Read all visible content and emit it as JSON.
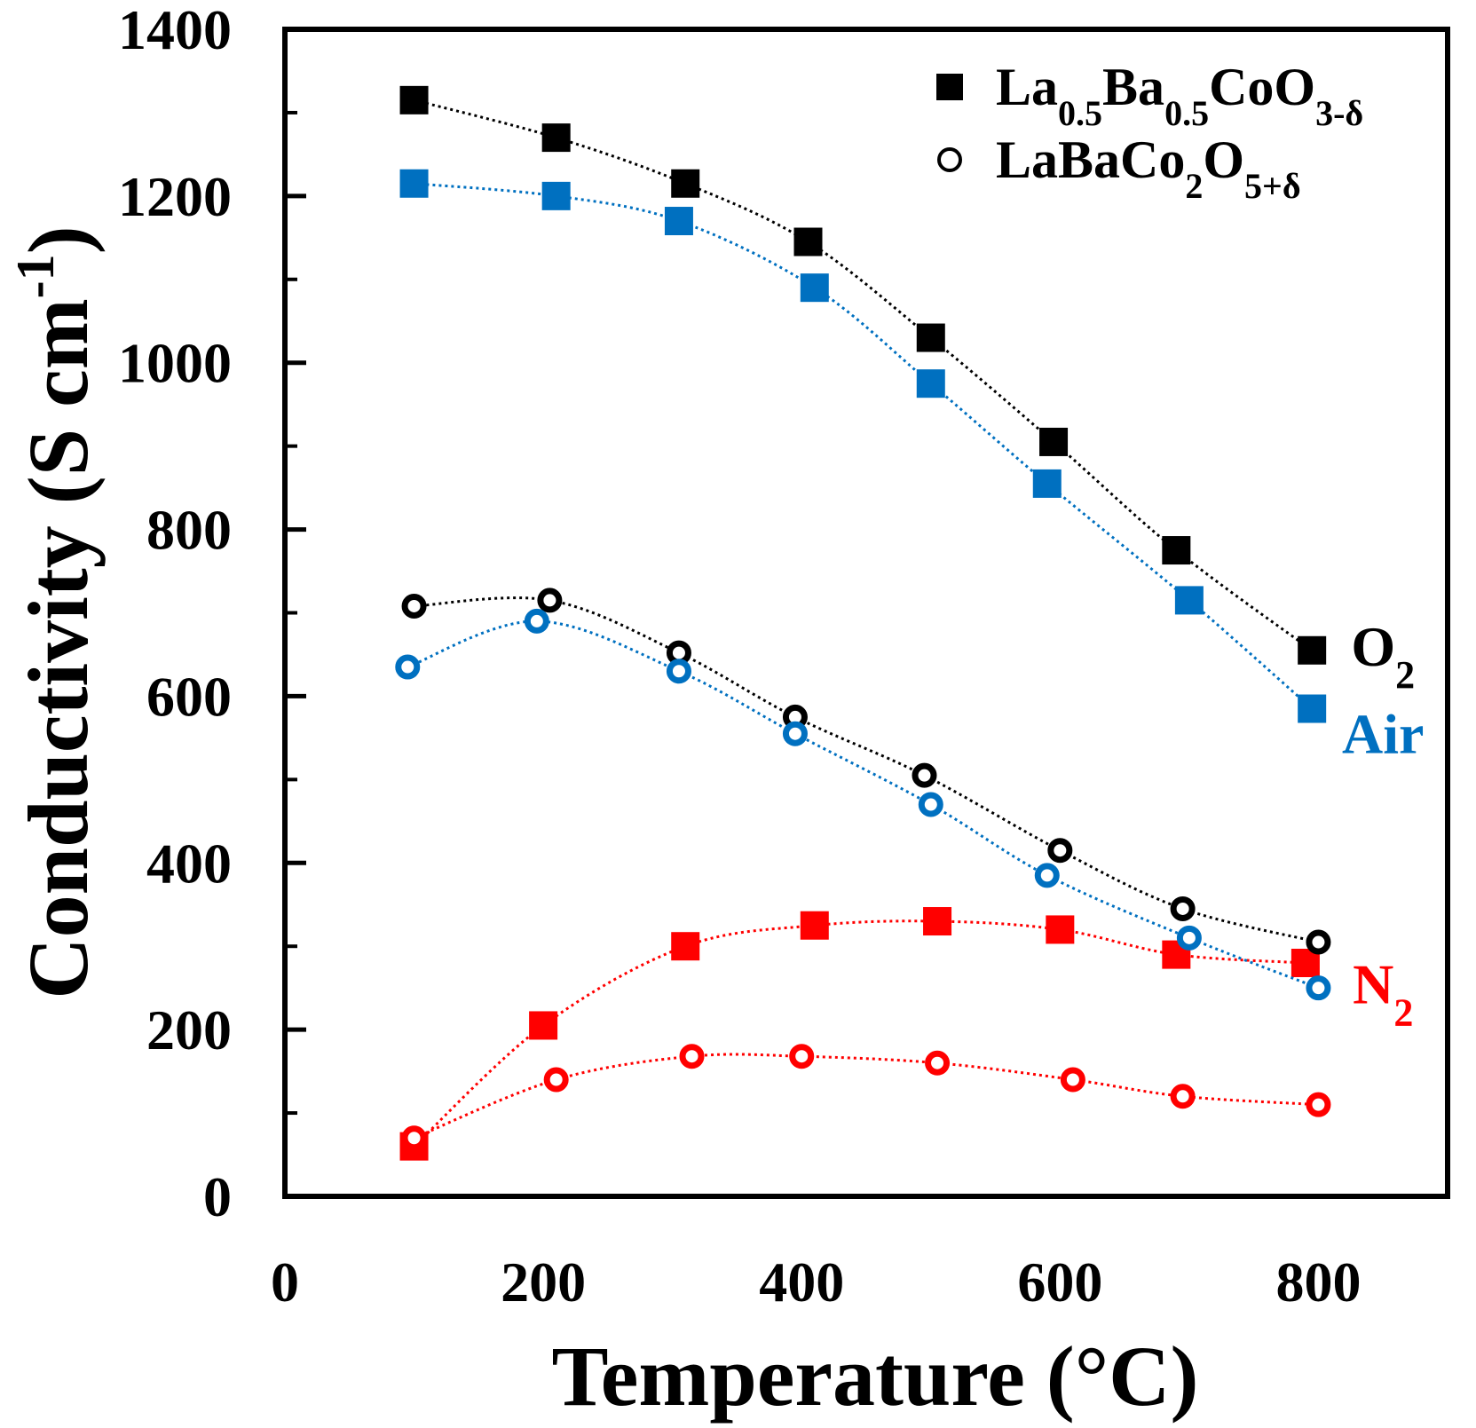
{
  "chart_data": {
    "type": "line",
    "title": "",
    "xlabel": "Temperature (°C)",
    "ylabel_main": "Conductivity (S cm",
    "ylabel_sup": "-1",
    "ylabel_close": ")",
    "xlim": [
      0,
      900
    ],
    "ylim": [
      0,
      1400
    ],
    "x_ticks": [
      0,
      200,
      400,
      600,
      800
    ],
    "y_ticks": [
      0,
      200,
      400,
      600,
      800,
      1000,
      1200,
      1400
    ],
    "y_minor_step": 100,
    "legend": [
      {
        "marker": "filled-square",
        "label_parts": [
          [
            "La",
            ""
          ],
          [
            "0.5",
            "sub"
          ],
          [
            "Ba",
            ""
          ],
          [
            "0.5",
            "sub"
          ],
          [
            "CoO",
            ""
          ],
          [
            "3-δ",
            "sub"
          ]
        ]
      },
      {
        "marker": "open-circle",
        "label_parts": [
          [
            "LaBaCo",
            ""
          ],
          [
            "2",
            "sub"
          ],
          [
            "O",
            ""
          ],
          [
            "5+δ",
            "sub"
          ]
        ]
      }
    ],
    "atmosphere_labels": [
      {
        "key": "O2",
        "parts": [
          [
            "O",
            ""
          ],
          [
            "2",
            "sub"
          ]
        ],
        "color": "#000000",
        "x": 850,
        "y": 660
      },
      {
        "key": "Air",
        "parts": [
          [
            "Air",
            ""
          ]
        ],
        "color": "#0070C0",
        "x": 850,
        "y": 555
      },
      {
        "key": "N2",
        "parts": [
          [
            "N",
            ""
          ],
          [
            "2",
            "sub"
          ]
        ],
        "color": "#FF0000",
        "x": 850,
        "y": 255
      }
    ],
    "series": [
      {
        "name": "La0.5Ba0.5CoO3-δ (O2)",
        "marker": "square",
        "color": "#000000",
        "x": [
          100,
          210,
          310,
          405,
          500,
          595,
          690,
          795
        ],
        "y": [
          1315,
          1270,
          1215,
          1145,
          1030,
          905,
          775,
          655
        ]
      },
      {
        "name": "La0.5Ba0.5CoO3-δ (Air)",
        "marker": "square",
        "color": "#0070C0",
        "x": [
          100,
          210,
          305,
          410,
          500,
          590,
          700,
          795
        ],
        "y": [
          1215,
          1200,
          1170,
          1090,
          975,
          855,
          715,
          585
        ]
      },
      {
        "name": "La0.5Ba0.5CoO3-δ (N2)",
        "marker": "square",
        "color": "#FF0000",
        "x": [
          100,
          200,
          310,
          410,
          505,
          600,
          690,
          790
        ],
        "y": [
          60,
          205,
          300,
          325,
          330,
          320,
          290,
          280
        ]
      },
      {
        "name": "LaBaCo2O5+δ (O2)",
        "marker": "circle",
        "color": "#000000",
        "x": [
          100,
          205,
          305,
          395,
          495,
          600,
          695,
          800
        ],
        "y": [
          708,
          715,
          652,
          575,
          505,
          415,
          345,
          305
        ]
      },
      {
        "name": "LaBaCo2O5+δ (Air)",
        "marker": "circle",
        "color": "#0070C0",
        "x": [
          95,
          195,
          305,
          395,
          500,
          590,
          700,
          800
        ],
        "y": [
          635,
          690,
          630,
          555,
          470,
          385,
          310,
          250
        ]
      },
      {
        "name": "LaBaCo2O5+δ (N2)",
        "marker": "circle",
        "color": "#FF0000",
        "x": [
          100,
          210,
          315,
          400,
          505,
          610,
          695,
          800
        ],
        "y": [
          70,
          140,
          168,
          168,
          160,
          140,
          120,
          110
        ]
      }
    ]
  }
}
